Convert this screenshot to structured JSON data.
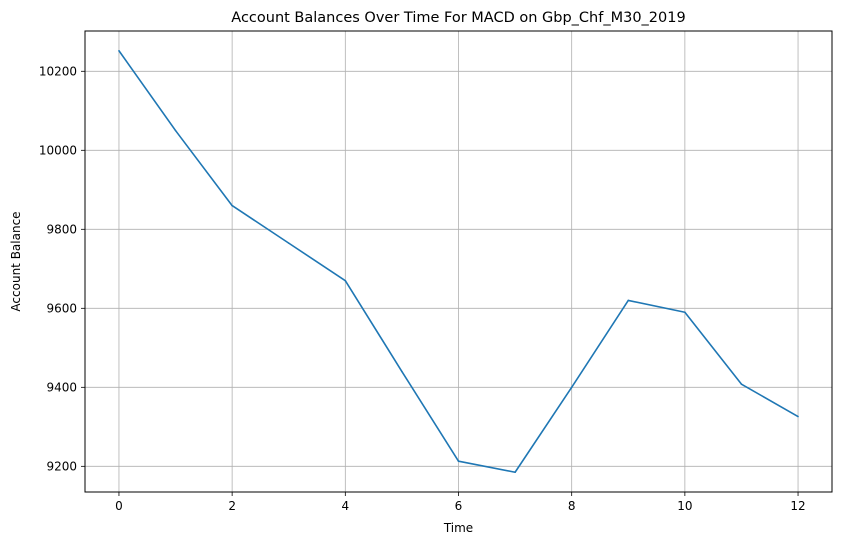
{
  "chart_data": {
    "type": "line",
    "title": "Account Balances Over Time For MACD on Gbp_Chf_M30_2019",
    "xlabel": "Time",
    "ylabel": "Account Balance",
    "x": [
      0,
      1,
      2,
      3,
      4,
      5,
      6,
      7,
      8,
      9,
      10,
      11,
      12
    ],
    "series": [
      {
        "values": [
          10252,
          10050,
          9860,
          9765,
          9670,
          9440,
          9213,
          9185,
          9400,
          9620,
          9590,
          9408,
          9326
        ]
      }
    ],
    "xlim": [
      -0.6,
      12.6
    ],
    "ylim": [
      9135,
      10302
    ],
    "xticks": [
      0,
      2,
      4,
      6,
      8,
      10,
      12
    ],
    "yticks": [
      9200,
      9400,
      9600,
      9800,
      10000,
      10200
    ],
    "grid": true,
    "colors": {
      "line": "#1f77b4",
      "grid": "#b0b0b0"
    }
  }
}
